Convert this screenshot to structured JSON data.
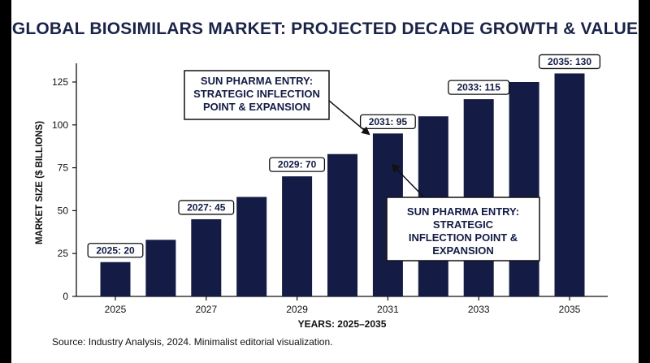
{
  "chart_data": {
    "type": "bar",
    "title": "GLOBAL BIOSIMILARS MARKET: PROJECTED DECADE GROWTH & VALUE",
    "xlabel": "YEARS: 2025–2035",
    "ylabel": "MARKET SIZE ($ BILLIONS)",
    "ylim": [
      0,
      135
    ],
    "yticks": [
      0,
      25,
      50,
      75,
      100,
      125
    ],
    "xtick_labels": [
      "2025",
      "2027",
      "2029",
      "2031",
      "2033",
      "2035"
    ],
    "categories": [
      "2025",
      "2026",
      "2027",
      "2028",
      "2029",
      "2030",
      "2031",
      "2032",
      "2033",
      "2034",
      "2035"
    ],
    "values": [
      20,
      33,
      45,
      58,
      70,
      83,
      95,
      105,
      115,
      125,
      130
    ],
    "data_labels": [
      {
        "index": 0,
        "text": "2025: 20"
      },
      {
        "index": 2,
        "text": "2027: 45"
      },
      {
        "index": 4,
        "text": "2029: 70"
      },
      {
        "index": 6,
        "text": "2031: 95"
      },
      {
        "index": 8,
        "text": "2033: 115"
      },
      {
        "index": 10,
        "text": "2035: 130"
      }
    ],
    "annotations": [
      {
        "lines": [
          "SUN PHARMA ENTRY:",
          "STRATEGIC INFLECTION",
          "POINT & EXPANSION"
        ],
        "target_index": 6
      },
      {
        "lines": [
          "SUN PHARMA ENTRY:",
          "STRATEGIC",
          "INFLECTION POINT &",
          "EXPANSION"
        ],
        "target_index": 6
      }
    ],
    "grid": false,
    "legend": "none",
    "bar_color": "#141c45"
  },
  "source": "Source: Industry Analysis, 2024. Minimalist editorial visualization."
}
